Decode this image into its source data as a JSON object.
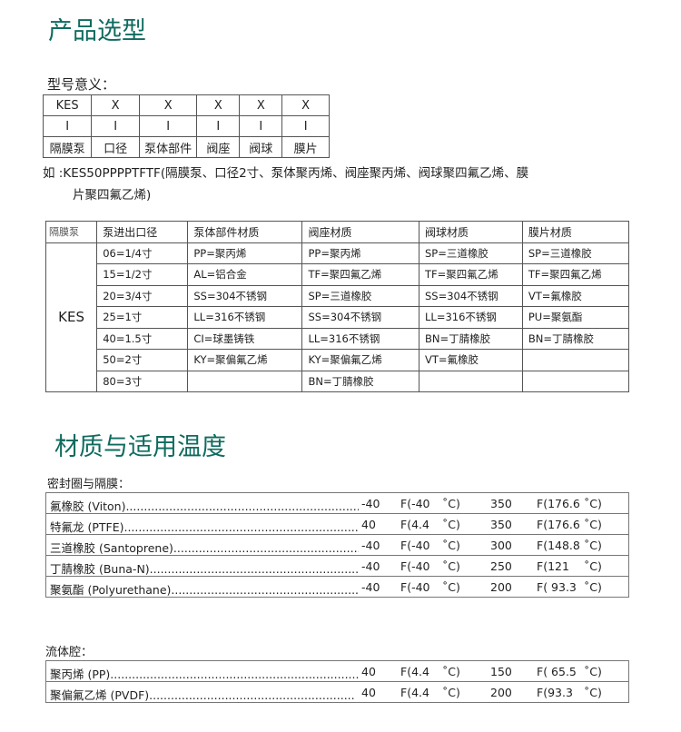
{
  "section1": {
    "title": "产品选型",
    "model_label": "型号意义：",
    "model_table": [
      [
        "KES",
        "X",
        "X",
        "X",
        "X",
        "X"
      ],
      [
        "I",
        "I",
        "I",
        "I",
        "I",
        "I"
      ],
      [
        "隔膜泵",
        "口径",
        "泵体部件",
        "阀座",
        "阀球",
        "膜片"
      ]
    ],
    "example_line1": "如 :KES50PPPPTFTF(隔膜泵、口径2寸、泵体聚丙烯、阀座聚丙烯、阀球聚四氟乙烯、膜",
    "example_line2": "片聚四氟乙烯)",
    "spec_headers": [
      "隔膜泵",
      "泵进出口径",
      "泵体部件材质",
      "阀座材质",
      "阀球材质",
      "膜片材质"
    ],
    "spec_model": "KES",
    "spec_rows": [
      [
        "06=1/4寸",
        "PP=聚丙烯",
        "PP=聚丙烯",
        "SP=三道橡胶",
        "SP=三道橡胶"
      ],
      [
        "15=1/2寸",
        "AL=铝合金",
        "TF=聚四氟乙烯",
        "TF=聚四氟乙烯",
        "TF=聚四氟乙烯"
      ],
      [
        "20=3/4寸",
        "SS=304不锈钢",
        "SP=三道橡胶",
        "SS=304不锈钢",
        "VT=氟橡胶"
      ],
      [
        "25=1寸",
        "LL=316不锈钢",
        "SS=304不锈钢",
        "LL=316不锈钢",
        "PU=聚氨酯"
      ],
      [
        "40=1.5寸",
        "CI=球墨铸铁",
        "LL=316不锈钢",
        "BN=丁腈橡胶",
        "BN=丁腈橡胶"
      ],
      [
        "50=2寸",
        "KY=聚偏氟乙烯",
        "KY=聚偏氟乙烯",
        "VT=氟橡胶",
        ""
      ],
      [
        "80=3寸",
        "",
        "BN=丁腈橡胶",
        "",
        ""
      ]
    ]
  },
  "section2": {
    "title": "材质与适用温度",
    "seal_label": "密封圈与隔膜：",
    "seal_rows": [
      [
        "氟橡胶 (Viton)..................................................................",
        "-40",
        "F(-40",
        "˚C)",
        "350",
        "F(176.6",
        "˚C)"
      ],
      [
        "特氟龙 (PTFE)..................................................................",
        "40",
        "F(4.4",
        "˚C)",
        "350",
        "F(176.6",
        "˚C)"
      ],
      [
        "三道橡胶 (Santoprene)....................................................",
        "-40",
        "F(-40",
        "˚C)",
        "300",
        "F(148.8",
        "˚C)"
      ],
      [
        "丁腈橡胶 (Buna-N)...........................................................",
        "-40",
        "F(-40",
        "˚C)",
        "250",
        "F(121",
        "˚C)"
      ],
      [
        "聚氨酯 (Polyurethane)......................................................",
        "-40",
        "F(-40",
        "˚C)",
        "200",
        "F( 93.3",
        "˚C)"
      ]
    ],
    "fluid_label": "流体腔：",
    "fluid_rows": [
      [
        "聚丙烯 (PP)........................................................................",
        "40",
        "F(4.4",
        "˚C)",
        "150",
        "F( 65.5",
        "˚C)"
      ],
      [
        "聚偏氟乙烯 (PVDF).........................................................",
        "40",
        "F(4.4",
        "˚C)",
        "200",
        "F(93.3",
        "˚C)"
      ]
    ]
  }
}
